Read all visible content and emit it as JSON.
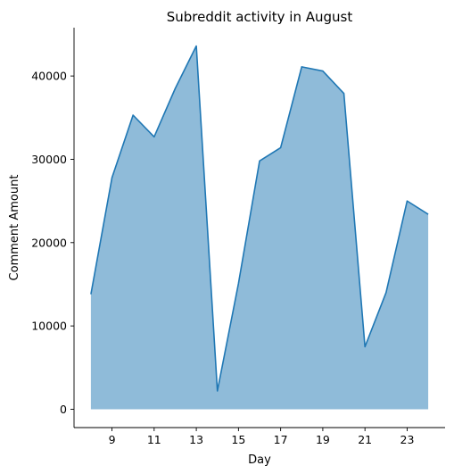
{
  "chart_data": {
    "type": "area",
    "title": "Subreddit activity in August",
    "xlabel": "Day",
    "ylabel": "Comment Amount",
    "x": [
      8,
      9,
      10,
      11,
      12,
      13,
      14,
      15,
      16,
      17,
      18,
      19,
      20,
      21,
      22,
      23,
      24
    ],
    "series": [
      {
        "values": [
          13800,
          27800,
          35300,
          32700,
          38500,
          43600,
          2200,
          15100,
          29800,
          31400,
          41100,
          40600,
          37900,
          7500,
          14000,
          25000,
          23400
        ]
      }
    ],
    "xticks": [
      9,
      11,
      13,
      15,
      17,
      19,
      21,
      23
    ],
    "yticks": [
      0,
      10000,
      20000,
      30000,
      40000
    ],
    "xlim": [
      7.2,
      24.8
    ],
    "ylim": [
      -2200,
      45800
    ],
    "grid": false,
    "line_color": "#1f77b4",
    "fill_color": "#1f77b4"
  }
}
